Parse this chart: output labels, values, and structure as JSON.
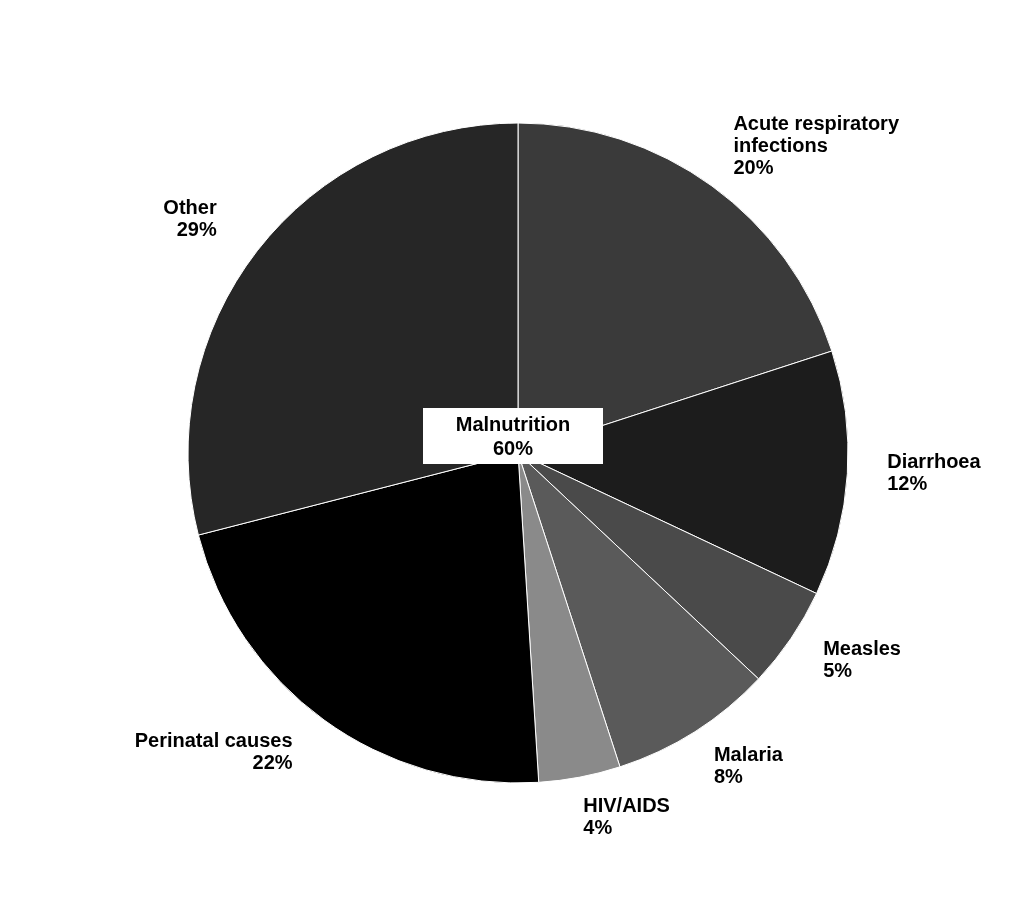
{
  "chart_data": {
    "type": "pie",
    "categories": [
      "Acute respiratory infections",
      "Diarrhoea",
      "Measles",
      "Malaria",
      "HIV/AIDS",
      "Perinatal causes",
      "Other"
    ],
    "values": [
      20,
      12,
      5,
      8,
      4,
      22,
      29
    ],
    "colors": [
      "#3a3a3a",
      "#1c1c1c",
      "#4a4a4a",
      "#5a5a5a",
      "#8a8a8a",
      "#000000",
      "#262626"
    ],
    "value_labels": [
      "20%",
      "12%",
      "5%",
      "8%",
      "4%",
      "22%",
      "29%"
    ],
    "annotations": [
      "Malnutrition 60%"
    ],
    "legend": false
  }
}
